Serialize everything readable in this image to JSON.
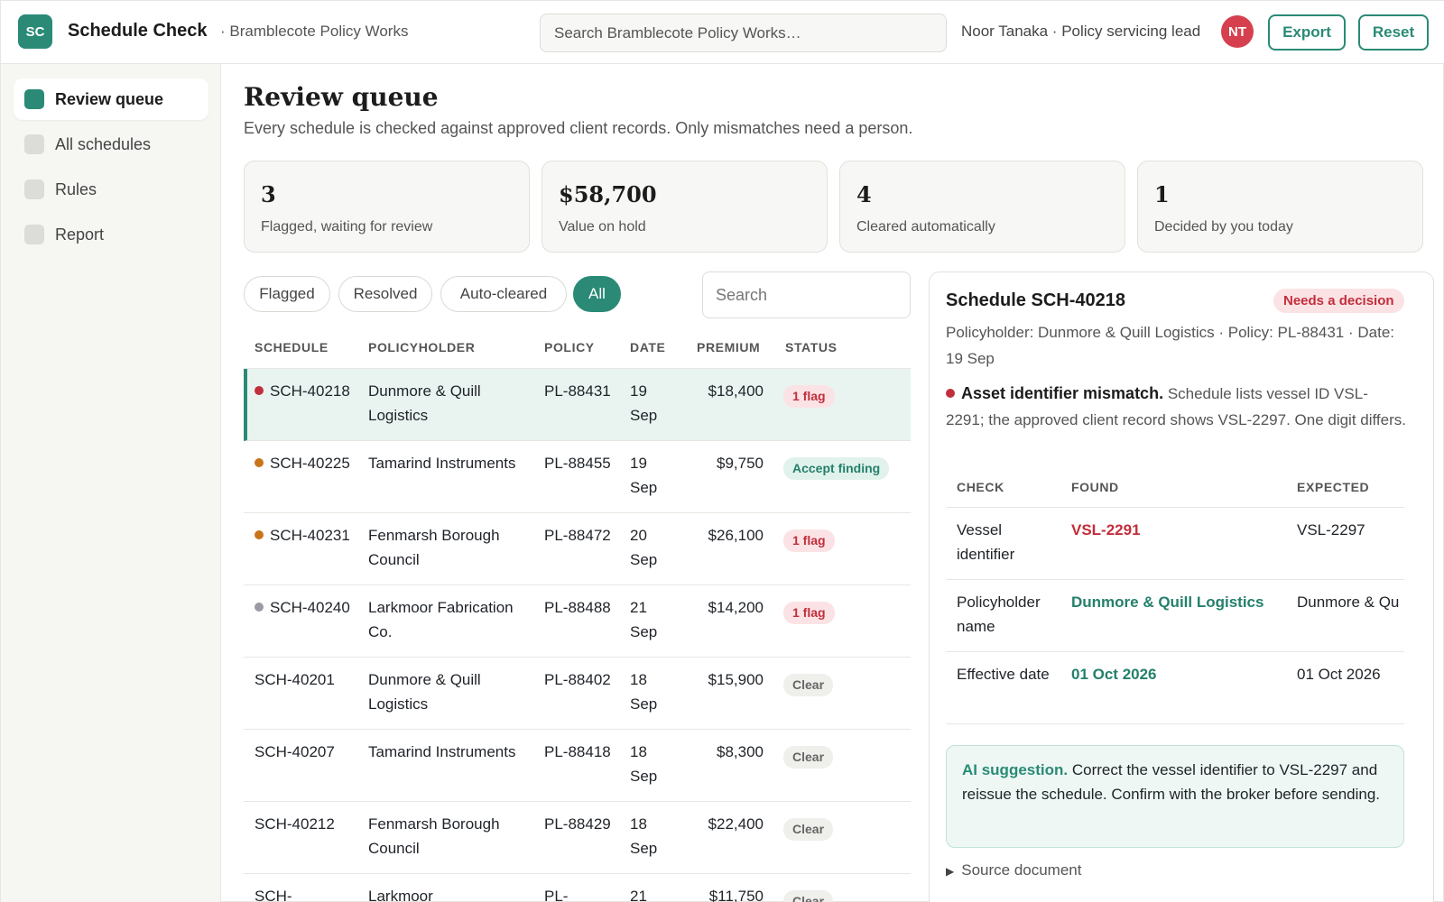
{
  "header": {
    "logo": "SC",
    "app_title": "Schedule Check",
    "org": "· Bramblecote Policy Works",
    "search_placeholder": "Search Bramblecote Policy Works…",
    "user": "Noor Tanaka · Policy servicing lead",
    "avatar": "NT",
    "export_label": "Export",
    "reset_label": "Reset"
  },
  "sidebar": {
    "items": [
      {
        "label": "Review queue",
        "active": true
      },
      {
        "label": "All schedules",
        "active": false
      },
      {
        "label": "Rules",
        "active": false
      },
      {
        "label": "Report",
        "active": false
      }
    ]
  },
  "main": {
    "title": "Review queue",
    "subtitle": "Every schedule is checked against approved client records. Only mismatches need a person.",
    "stats": [
      {
        "value": "3",
        "label": "Flagged, waiting for review"
      },
      {
        "value": "$58,700",
        "label": "Value on hold"
      },
      {
        "value": "4",
        "label": "Cleared automatically"
      },
      {
        "value": "1",
        "label": "Decided by you today"
      }
    ],
    "filters": [
      {
        "label": "Flagged",
        "active": false
      },
      {
        "label": "Resolved",
        "active": false
      },
      {
        "label": "Auto-cleared",
        "active": false
      },
      {
        "label": "All",
        "active": true
      }
    ],
    "search_placeholder": "Search"
  },
  "table": {
    "columns": [
      "SCHEDULE",
      "POLICYHOLDER",
      "POLICY",
      "DATE",
      "PREMIUM",
      "STATUS"
    ],
    "rows": [
      {
        "schedule": "SCH-40218",
        "holder": "Dunmore & Quill Logistics",
        "policy": "PL-88431",
        "date": "19 Sep",
        "premium": "$18,400",
        "status": "1 flag",
        "status_type": "flag",
        "dot": "#c22e3c",
        "selected": true
      },
      {
        "schedule": "SCH-40225",
        "holder": "Tamarind Instruments",
        "policy": "PL-88455",
        "date": "19 Sep",
        "premium": "$9,750",
        "status": "Accept finding",
        "status_type": "accept",
        "dot": "#c8741a",
        "selected": false
      },
      {
        "schedule": "SCH-40231",
        "holder": "Fenmarsh Borough Council",
        "policy": "PL-88472",
        "date": "20 Sep",
        "premium": "$26,100",
        "status": "1 flag",
        "status_type": "flag",
        "dot": "#c8741a",
        "selected": false
      },
      {
        "schedule": "SCH-40240",
        "holder": "Larkmoor Fabrication Co.",
        "policy": "PL-88488",
        "date": "21 Sep",
        "premium": "$14,200",
        "status": "1 flag",
        "status_type": "flag",
        "dot": "#9a9aa2",
        "selected": false
      },
      {
        "schedule": "SCH-40201",
        "holder": "Dunmore & Quill Logistics",
        "policy": "PL-88402",
        "date": "18 Sep",
        "premium": "$15,900",
        "status": "Clear",
        "status_type": "clear",
        "dot": "",
        "selected": false
      },
      {
        "schedule": "SCH-40207",
        "holder": "Tamarind Instruments",
        "policy": "PL-88418",
        "date": "18 Sep",
        "premium": "$8,300",
        "status": "Clear",
        "status_type": "clear",
        "dot": "",
        "selected": false
      },
      {
        "schedule": "SCH-40212",
        "holder": "Fenmarsh Borough Council",
        "policy": "PL-88429",
        "date": "18 Sep",
        "premium": "$22,400",
        "status": "Clear",
        "status_type": "clear",
        "dot": "",
        "selected": false
      },
      {
        "schedule": "SCH-",
        "holder": "Larkmoor",
        "policy": "PL-",
        "date": "21",
        "premium": "$11,750",
        "status": "Clear",
        "status_type": "clear",
        "dot": "",
        "selected": false
      }
    ]
  },
  "detail": {
    "title": "Schedule SCH-40218",
    "badge": "Needs a decision",
    "meta": "Policyholder: Dunmore & Quill Logistics · Policy: PL-88431 · Date: 19 Sep",
    "finding_title": "Asset identifier mismatch.",
    "finding_text": "Schedule lists vessel ID VSL-2291; the approved client record shows VSL-2297. One digit differs.",
    "finding_dot": "#c22e3c",
    "columns": [
      "CHECK",
      "FOUND",
      "EXPECTED"
    ],
    "checks": [
      {
        "check": "Vessel identifier",
        "found": "VSL-2291",
        "expected": "VSL-2297",
        "ok": false
      },
      {
        "check": "Policyholder name",
        "found": "Dunmore & Quill Logistics",
        "expected": "Dunmore & Qu",
        "ok": true
      },
      {
        "check": "Effective date",
        "found": "01 Oct 2026",
        "expected": "01 Oct 2026",
        "ok": true
      }
    ],
    "ai_label": "AI suggestion.",
    "ai_text": "Correct the vessel identifier to VSL-2297 and reissue the schedule. Confirm with the broker before sending.",
    "source_label": "Source document"
  },
  "colors": {
    "accent": "#2a8a76",
    "flag": "#c22e3c",
    "ok": "#24806b"
  }
}
